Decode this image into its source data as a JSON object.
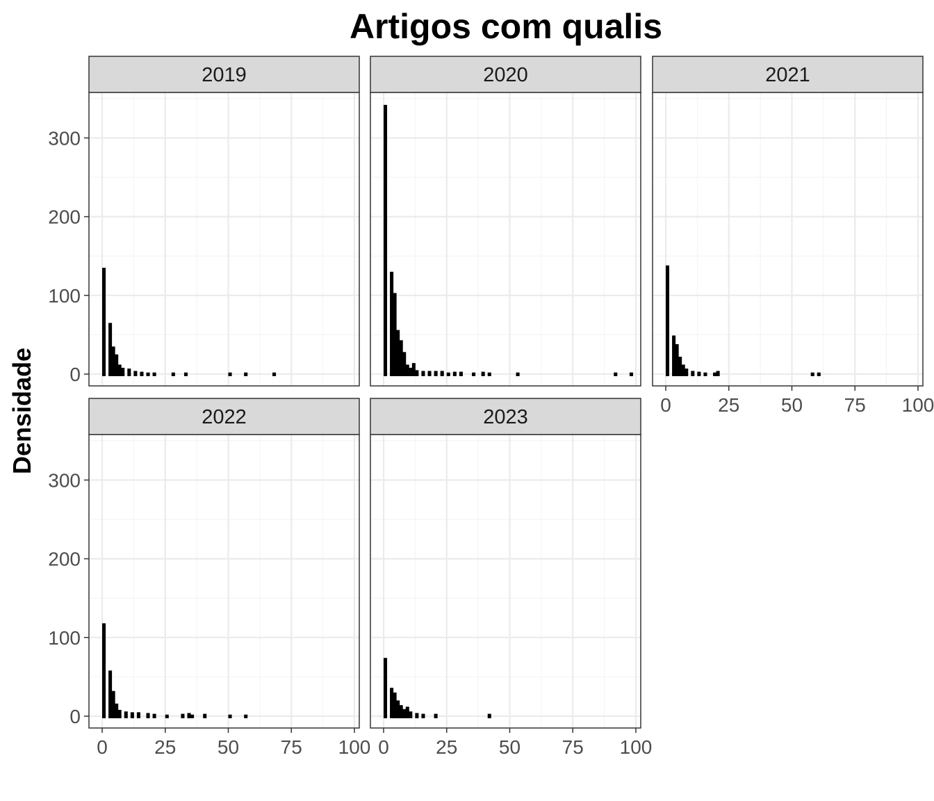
{
  "chart_data": {
    "type": "bar",
    "title": "Artigos com qualis",
    "xlabel": "",
    "ylabel": "Densidade",
    "xlim": [
      0,
      100
    ],
    "ylim": [
      0,
      350
    ],
    "x_ticks": [
      0,
      25,
      50,
      75,
      100
    ],
    "y_ticks": [
      0,
      100,
      200,
      300
    ],
    "bin_width": 2.5,
    "grid": true,
    "legend": "none",
    "bar_color": "#000000",
    "panels": [
      {
        "label": "2019",
        "bins": [
          {
            "x": 0,
            "value": 135
          },
          {
            "x": 2.5,
            "value": 65
          },
          {
            "x": 3.75,
            "value": 35
          },
          {
            "x": 5,
            "value": 25
          },
          {
            "x": 6.25,
            "value": 12
          },
          {
            "x": 7.5,
            "value": 8
          },
          {
            "x": 10,
            "value": 7
          },
          {
            "x": 12.5,
            "value": 4
          },
          {
            "x": 15,
            "value": 3
          },
          {
            "x": 17.5,
            "value": 2
          },
          {
            "x": 20,
            "value": 2
          },
          {
            "x": 27.5,
            "value": 2
          },
          {
            "x": 32.5,
            "value": 2
          },
          {
            "x": 50,
            "value": 2
          },
          {
            "x": 56.25,
            "value": 2
          },
          {
            "x": 67.5,
            "value": 2
          }
        ]
      },
      {
        "label": "2020",
        "bins": [
          {
            "x": 0,
            "value": 342
          },
          {
            "x": 2.5,
            "value": 130
          },
          {
            "x": 3.75,
            "value": 103
          },
          {
            "x": 5,
            "value": 56
          },
          {
            "x": 6.25,
            "value": 43
          },
          {
            "x": 7.5,
            "value": 28
          },
          {
            "x": 8.75,
            "value": 12
          },
          {
            "x": 10,
            "value": 8
          },
          {
            "x": 11.25,
            "value": 14
          },
          {
            "x": 12.5,
            "value": 5
          },
          {
            "x": 15,
            "value": 4
          },
          {
            "x": 17.5,
            "value": 4
          },
          {
            "x": 20,
            "value": 4
          },
          {
            "x": 22.5,
            "value": 4
          },
          {
            "x": 25,
            "value": 2
          },
          {
            "x": 27.5,
            "value": 3
          },
          {
            "x": 30,
            "value": 3
          },
          {
            "x": 35,
            "value": 2
          },
          {
            "x": 38.75,
            "value": 3
          },
          {
            "x": 41.25,
            "value": 2
          },
          {
            "x": 52.5,
            "value": 2
          },
          {
            "x": 91.25,
            "value": 2
          },
          {
            "x": 97.5,
            "value": 2
          }
        ]
      },
      {
        "label": "2021",
        "bins": [
          {
            "x": 0,
            "value": 138
          },
          {
            "x": 2.5,
            "value": 49
          },
          {
            "x": 3.75,
            "value": 38
          },
          {
            "x": 5,
            "value": 22
          },
          {
            "x": 6.25,
            "value": 12
          },
          {
            "x": 7.5,
            "value": 7
          },
          {
            "x": 10,
            "value": 4
          },
          {
            "x": 12.5,
            "value": 3
          },
          {
            "x": 15,
            "value": 2
          },
          {
            "x": 18.75,
            "value": 2
          },
          {
            "x": 20,
            "value": 4
          },
          {
            "x": 57.5,
            "value": 2
          },
          {
            "x": 60,
            "value": 2
          }
        ]
      },
      {
        "label": "2022",
        "bins": [
          {
            "x": 0,
            "value": 118
          },
          {
            "x": 2.5,
            "value": 58
          },
          {
            "x": 3.75,
            "value": 32
          },
          {
            "x": 5,
            "value": 16
          },
          {
            "x": 6.25,
            "value": 8
          },
          {
            "x": 8.75,
            "value": 6
          },
          {
            "x": 11.25,
            "value": 5
          },
          {
            "x": 13.75,
            "value": 5
          },
          {
            "x": 17.5,
            "value": 4
          },
          {
            "x": 20,
            "value": 3
          },
          {
            "x": 25,
            "value": 2
          },
          {
            "x": 31.25,
            "value": 3
          },
          {
            "x": 33.75,
            "value": 4
          },
          {
            "x": 35,
            "value": 2
          },
          {
            "x": 40,
            "value": 3
          },
          {
            "x": 50,
            "value": 2
          },
          {
            "x": 56.25,
            "value": 2
          }
        ]
      },
      {
        "label": "2023",
        "bins": [
          {
            "x": 0,
            "value": 74
          },
          {
            "x": 2.5,
            "value": 36
          },
          {
            "x": 3.75,
            "value": 30
          },
          {
            "x": 5,
            "value": 20
          },
          {
            "x": 6.25,
            "value": 14
          },
          {
            "x": 7.5,
            "value": 9
          },
          {
            "x": 8.75,
            "value": 12
          },
          {
            "x": 10,
            "value": 6
          },
          {
            "x": 12.5,
            "value": 4
          },
          {
            "x": 15,
            "value": 3
          },
          {
            "x": 20,
            "value": 3
          },
          {
            "x": 41.25,
            "value": 3
          }
        ]
      }
    ]
  }
}
